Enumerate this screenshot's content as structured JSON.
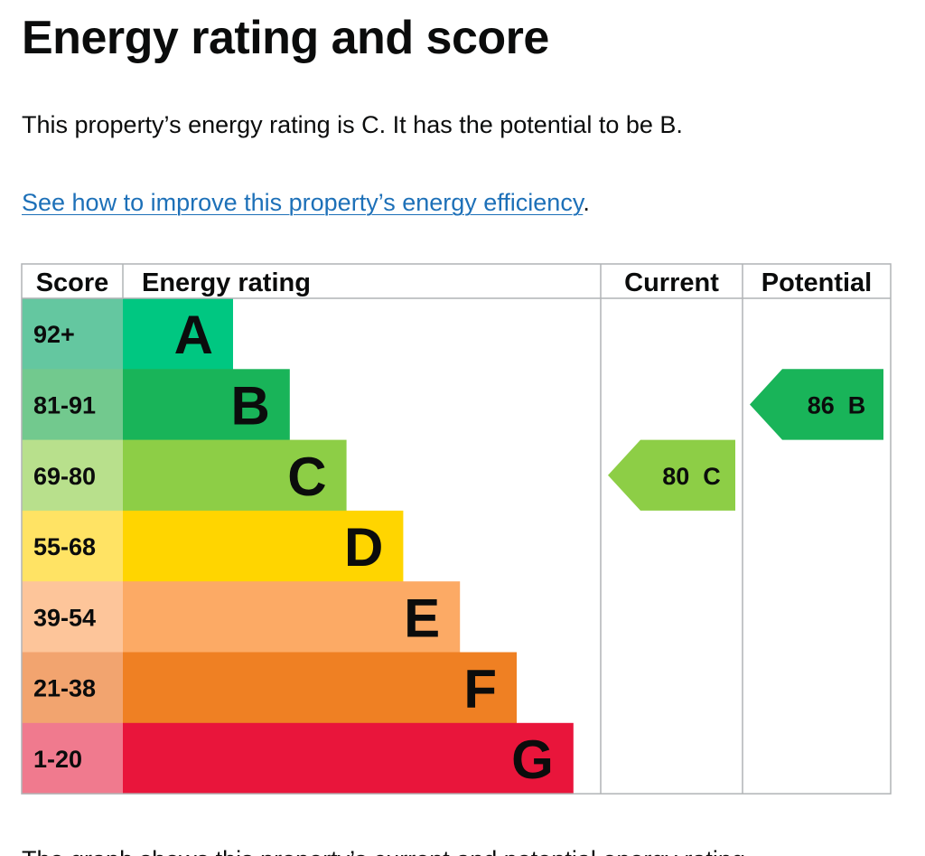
{
  "page": {
    "title": "Energy rating and score",
    "summary": "This property’s energy rating is C. It has the potential to be B.",
    "improve_link": "See how to improve this property’s energy efficiency",
    "improve_suffix": ".",
    "footer_partial": "The graph shows this property’s current and potential energy rating."
  },
  "chart_data": {
    "type": "bar",
    "title": "",
    "headers": {
      "score": "Score",
      "rating": "Energy rating",
      "current": "Current",
      "potential": "Potential"
    },
    "bands": [
      {
        "letter": "A",
        "range": "92+",
        "color": "#00c781",
        "score_bg": "#64c7a0"
      },
      {
        "letter": "B",
        "range": "81-91",
        "color": "#19b459",
        "score_bg": "#72c98e"
      },
      {
        "letter": "C",
        "range": "69-80",
        "color": "#8dce46",
        "score_bg": "#b8e08c"
      },
      {
        "letter": "D",
        "range": "55-68",
        "color": "#ffd500",
        "score_bg": "#ffe364"
      },
      {
        "letter": "E",
        "range": "39-54",
        "color": "#fcaa65",
        "score_bg": "#fdc59a"
      },
      {
        "letter": "F",
        "range": "21-38",
        "color": "#ef8023",
        "score_bg": "#f2a46f"
      },
      {
        "letter": "G",
        "range": "1-20",
        "color": "#e9153b",
        "score_bg": "#f07a8e"
      }
    ],
    "current": {
      "score": 80,
      "letter": "C"
    },
    "potential": {
      "score": 86,
      "letter": "B"
    }
  }
}
